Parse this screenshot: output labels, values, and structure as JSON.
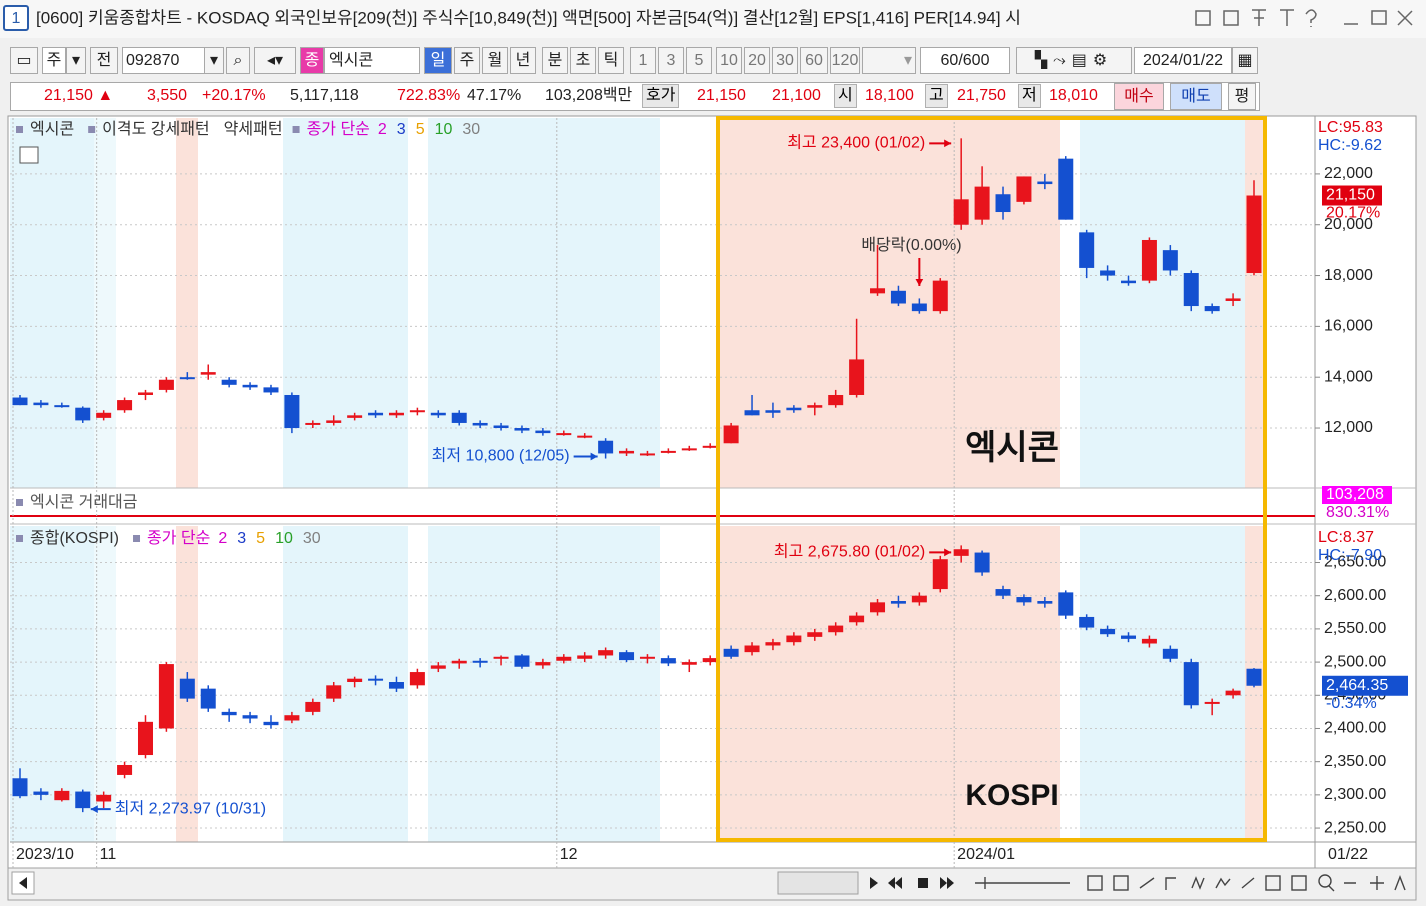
{
  "window": {
    "number": "1",
    "title": "[0600] 키움종합차트 - KOSDAQ 외국인보유[209(천)] 주식수[10,849(천)] 액면[500] 자본금[54(억)] 결산[12월] EPS[1,416] PER[14.94] 시"
  },
  "toolbar": {
    "period": "주",
    "prev": "전",
    "code": "092870",
    "kind": "종",
    "name": "엑시콘",
    "units": [
      "일",
      "주",
      "월",
      "년",
      "분",
      "초",
      "틱"
    ],
    "counts": [
      "1",
      "3",
      "5",
      "10",
      "20",
      "30",
      "60",
      "120"
    ],
    "range": "60/600",
    "date": "2024/01/22"
  },
  "quote": {
    "price": "21,150 ▲",
    "change": "3,550",
    "rate": "+20.17%",
    "volume": "5,117,118",
    "vol_ratio": "722.83%",
    "turnover": "47.17%",
    "amount": "103,208백만",
    "bid_label": "호가",
    "bid": "21,150",
    "ask": "21,100",
    "open_label": "시",
    "open": "18,100",
    "high_label": "고",
    "high": "21,750",
    "low_label": "저",
    "low": "18,010",
    "buy": "매수",
    "sell": "매도",
    "avg": "평"
  },
  "x_axis": {
    "categories": [
      "2023/10",
      null,
      null,
      null,
      "11",
      null,
      null,
      null,
      null,
      null,
      null,
      null,
      null,
      null,
      null,
      null,
      null,
      null,
      null,
      null,
      null,
      null,
      null,
      null,
      null,
      null,
      "12",
      null,
      null,
      null,
      null,
      null,
      null,
      null,
      null,
      null,
      null,
      null,
      null,
      null,
      null,
      null,
      null,
      null,
      null,
      "2024/01",
      null,
      null,
      null,
      null,
      null,
      null,
      null,
      null,
      null,
      null,
      null,
      null,
      null,
      null
    ],
    "current": "01/22"
  },
  "charts": {
    "stock": {
      "type": "candlestick",
      "legend": [
        "엑시콘",
        "이격도 강세패턴",
        "약세패턴",
        "종가 단순"
      ],
      "ma": [
        {
          "label": "2",
          "color": "#d400c8"
        },
        {
          "label": "3",
          "color": "#1c3cc8"
        },
        {
          "label": "5",
          "color": "#e8a000"
        },
        {
          "label": "10",
          "color": "#28a028"
        },
        {
          "label": "30",
          "color": "#808080"
        }
      ],
      "ylim": [
        9640,
        24200
      ],
      "yticks": [
        {
          "value": 12000,
          "label": "12,000"
        },
        {
          "value": 14000,
          "label": "14,000"
        },
        {
          "value": 16000,
          "label": "16,000"
        },
        {
          "value": 18000,
          "label": "18,000"
        },
        {
          "value": 20000,
          "label": "20,000"
        },
        {
          "value": 22000,
          "label": "22,000"
        }
      ],
      "up_color": "#e8141c",
      "down_color": "#1450d0",
      "candles": [
        [
          13200,
          13300,
          12900,
          12900
        ],
        [
          13000,
          13100,
          12800,
          12900
        ],
        [
          12900,
          13000,
          12800,
          12850
        ],
        [
          12800,
          12850,
          12200,
          12300
        ],
        [
          12400,
          12700,
          12300,
          12600
        ],
        [
          12700,
          13200,
          12600,
          13100
        ],
        [
          13300,
          13500,
          13100,
          13400
        ],
        [
          13500,
          14000,
          13400,
          13900
        ],
        [
          14000,
          14200,
          13900,
          13950
        ],
        [
          14100,
          14500,
          13900,
          14200
        ],
        [
          13900,
          14000,
          13600,
          13700
        ],
        [
          13700,
          13800,
          13500,
          13600
        ],
        [
          13600,
          13700,
          13300,
          13400
        ],
        [
          13300,
          13400,
          11800,
          12000
        ],
        [
          12200,
          12300,
          12000,
          12200
        ],
        [
          12200,
          12500,
          12100,
          12300
        ],
        [
          12400,
          12600,
          12300,
          12500
        ],
        [
          12600,
          12700,
          12400,
          12500
        ],
        [
          12500,
          12700,
          12400,
          12600
        ],
        [
          12700,
          12800,
          12500,
          12700
        ],
        [
          12600,
          12700,
          12400,
          12500
        ],
        [
          12600,
          12700,
          12100,
          12200
        ],
        [
          12200,
          12300,
          12000,
          12100
        ],
        [
          12100,
          12200,
          11900,
          12000
        ],
        [
          12000,
          12100,
          11800,
          11900
        ],
        [
          11900,
          12000,
          11700,
          11800
        ],
        [
          11800,
          11900,
          11700,
          11800
        ],
        [
          11700,
          11800,
          11600,
          11700
        ],
        [
          11500,
          11600,
          10800,
          11000
        ],
        [
          11000,
          11200,
          10900,
          11100
        ],
        [
          11000,
          11100,
          10900,
          11000
        ],
        [
          11100,
          11200,
          11000,
          11100
        ],
        [
          11200,
          11300,
          11100,
          11200
        ],
        [
          11300,
          11400,
          11200,
          11300
        ],
        [
          11400,
          12200,
          11400,
          12100
        ],
        [
          12700,
          13300,
          12500,
          12500
        ],
        [
          12700,
          13000,
          12400,
          12600
        ],
        [
          12800,
          12900,
          12600,
          12700
        ],
        [
          12800,
          13000,
          12500,
          12900
        ],
        [
          12900,
          13500,
          12800,
          13300
        ],
        [
          13300,
          16300,
          13200,
          14700
        ],
        [
          17300,
          19200,
          17200,
          17500
        ],
        [
          17400,
          17600,
          16800,
          16900
        ],
        [
          16900,
          17100,
          16500,
          16600
        ],
        [
          16600,
          17900,
          16500,
          17800
        ],
        [
          20000,
          23400,
          19800,
          21000
        ],
        [
          20200,
          22300,
          20000,
          21500
        ],
        [
          21200,
          21500,
          20200,
          20500
        ],
        [
          20900,
          21900,
          20800,
          21900
        ],
        [
          21700,
          22000,
          21400,
          21600
        ],
        [
          22600,
          22700,
          20200,
          20200
        ],
        [
          19700,
          19800,
          17900,
          18300
        ],
        [
          18200,
          18400,
          17800,
          18000
        ],
        [
          17800,
          18000,
          17600,
          17700
        ],
        [
          17800,
          19500,
          17700,
          19400
        ],
        [
          19000,
          19200,
          18000,
          18200
        ],
        [
          18100,
          18200,
          16600,
          16800
        ],
        [
          16800,
          16900,
          16500,
          16600
        ],
        [
          17000,
          17300,
          16800,
          17100
        ],
        [
          18100,
          21750,
          18010,
          21150
        ]
      ],
      "lc": "LC:95.83",
      "hc": "HC:-9.62",
      "last": "21,150",
      "last_rate": "20.17%",
      "annotations": {
        "high": "최고 23,400 (01/02)",
        "low": "최저 10,800 (12/05)",
        "dividend": "배당락(0.00%)"
      },
      "overlay": "엑시콘"
    },
    "volume": {
      "legend": "엑시콘 거래대금",
      "last": "103,208",
      "last_rate": "830.31%"
    },
    "kospi": {
      "type": "candlestick",
      "legend": [
        "종합(KOSPI)",
        "종가 단순"
      ],
      "ma": [
        {
          "label": "2",
          "color": "#d400c8"
        },
        {
          "label": "3",
          "color": "#1c3cc8"
        },
        {
          "label": "5",
          "color": "#e8a000"
        },
        {
          "label": "10",
          "color": "#28a028"
        },
        {
          "label": "30",
          "color": "#808080"
        }
      ],
      "ylim": [
        2229,
        2705
      ],
      "yticks": [
        {
          "value": 2250,
          "label": "2,250.00"
        },
        {
          "value": 2300,
          "label": "2,300.00"
        },
        {
          "value": 2350,
          "label": "2,350.00"
        },
        {
          "value": 2400,
          "label": "2,400.00"
        },
        {
          "value": 2450,
          "label": "2,450.00"
        },
        {
          "value": 2500,
          "label": "2,500.00"
        },
        {
          "value": 2550,
          "label": "2,550.00"
        },
        {
          "value": 2600,
          "label": "2,600.00"
        },
        {
          "value": 2650,
          "label": "2,650.00"
        }
      ],
      "up_color": "#e8141c",
      "down_color": "#1450d0",
      "candles": [
        [
          2325,
          2340,
          2295,
          2298
        ],
        [
          2305,
          2310,
          2292,
          2300
        ],
        [
          2292,
          2310,
          2290,
          2306
        ],
        [
          2305,
          2308,
          2273.97,
          2280
        ],
        [
          2290,
          2305,
          2280,
          2300
        ],
        [
          2330,
          2350,
          2325,
          2345
        ],
        [
          2360,
          2420,
          2355,
          2410
        ],
        [
          2400,
          2500,
          2395,
          2497
        ],
        [
          2475,
          2485,
          2440,
          2445
        ],
        [
          2460,
          2465,
          2425,
          2430
        ],
        [
          2425,
          2430,
          2410,
          2420
        ],
        [
          2420,
          2425,
          2408,
          2415
        ],
        [
          2410,
          2420,
          2400,
          2405
        ],
        [
          2412,
          2425,
          2408,
          2420
        ],
        [
          2425,
          2445,
          2420,
          2440
        ],
        [
          2445,
          2470,
          2440,
          2465
        ],
        [
          2470,
          2478,
          2462,
          2475
        ],
        [
          2475,
          2480,
          2465,
          2472
        ],
        [
          2470,
          2478,
          2455,
          2460
        ],
        [
          2465,
          2490,
          2460,
          2485
        ],
        [
          2490,
          2500,
          2485,
          2495
        ],
        [
          2498,
          2505,
          2490,
          2502
        ],
        [
          2502,
          2506,
          2492,
          2500
        ],
        [
          2505,
          2510,
          2495,
          2508
        ],
        [
          2510,
          2512,
          2490,
          2493
        ],
        [
          2495,
          2505,
          2490,
          2500
        ],
        [
          2502,
          2512,
          2498,
          2508
        ],
        [
          2505,
          2515,
          2500,
          2510
        ],
        [
          2510,
          2522,
          2505,
          2518
        ],
        [
          2515,
          2518,
          2500,
          2503
        ],
        [
          2505,
          2512,
          2498,
          2508
        ],
        [
          2506,
          2510,
          2494,
          2498
        ],
        [
          2496,
          2504,
          2485,
          2500
        ],
        [
          2500,
          2510,
          2495,
          2506
        ],
        [
          2520,
          2525,
          2505,
          2508
        ],
        [
          2515,
          2530,
          2510,
          2525
        ],
        [
          2525,
          2535,
          2518,
          2530
        ],
        [
          2530,
          2545,
          2525,
          2540
        ],
        [
          2538,
          2550,
          2532,
          2545
        ],
        [
          2545,
          2560,
          2540,
          2555
        ],
        [
          2560,
          2575,
          2555,
          2570
        ],
        [
          2575,
          2595,
          2570,
          2590
        ],
        [
          2592,
          2600,
          2582,
          2588
        ],
        [
          2590,
          2605,
          2585,
          2600
        ],
        [
          2610,
          2660,
          2605,
          2655
        ],
        [
          2660,
          2675.8,
          2650,
          2670
        ],
        [
          2665,
          2668,
          2630,
          2635
        ],
        [
          2610,
          2615,
          2595,
          2600
        ],
        [
          2598,
          2602,
          2585,
          2590
        ],
        [
          2592,
          2598,
          2582,
          2588
        ],
        [
          2605,
          2608,
          2565,
          2570
        ],
        [
          2568,
          2572,
          2548,
          2552
        ],
        [
          2550,
          2555,
          2538,
          2542
        ],
        [
          2540,
          2545,
          2530,
          2535
        ],
        [
          2528,
          2540,
          2522,
          2535
        ],
        [
          2520,
          2525,
          2500,
          2505
        ],
        [
          2500,
          2505,
          2430,
          2435
        ],
        [
          2438,
          2445,
          2420,
          2440
        ],
        [
          2450,
          2460,
          2445,
          2457
        ],
        [
          2490,
          2491,
          2462,
          2464.35
        ]
      ],
      "lc": "LC:8.37",
      "hc": "HC:-7.90",
      "last": "2,464.35",
      "last_rate": "-0.34%",
      "annotations": {
        "high": "최고 2,675.80 (01/02)",
        "low": "최저 2,273.97 (10/31)"
      },
      "overlay": "KOSPI"
    }
  }
}
